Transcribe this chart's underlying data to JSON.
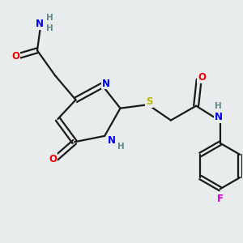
{
  "bg_color": "#e8ecec",
  "bond_color": "#1a1a1a",
  "colors": {
    "N": "#0000ee",
    "O": "#ee0000",
    "S": "#bbbb00",
    "F": "#cc00cc",
    "H": "#5a8a8a",
    "C": "#1a1a1a"
  },
  "figsize": [
    3.0,
    3.0
  ],
  "dpi": 100
}
